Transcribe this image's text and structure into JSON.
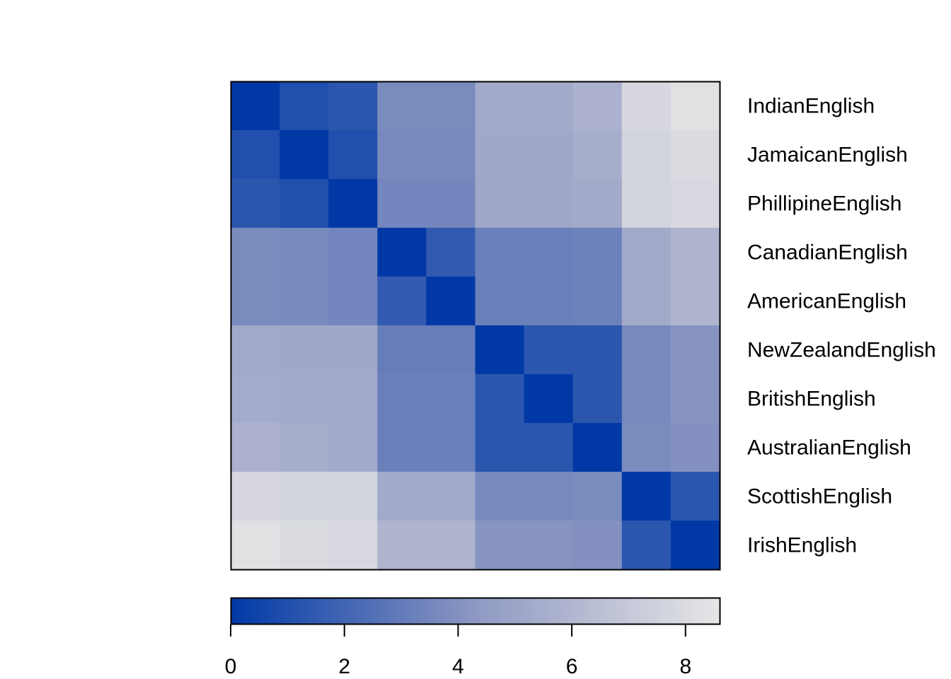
{
  "chart_data": {
    "type": "heatmap",
    "title": "",
    "rows": [
      "IndianEnglish",
      "JamaicanEnglish",
      "PhillipineEnglish",
      "CanadianEnglish",
      "AmericanEnglish",
      "NewZealandEnglish",
      "BritishEnglish",
      "AustralianEnglish",
      "ScottishEnglish",
      "IrishEnglish"
    ],
    "columns": [
      "IndianEnglish",
      "JamaicanEnglish",
      "PhillipineEnglish",
      "CanadianEnglish",
      "AmericanEnglish",
      "NewZealandEnglish",
      "BritishEnglish",
      "AustralianEnglish",
      "ScottishEnglish",
      "IrishEnglish"
    ],
    "values": [
      [
        0.0,
        1.0,
        1.3,
        3.7,
        3.7,
        5.3,
        5.3,
        5.7,
        7.8,
        8.3
      ],
      [
        1.0,
        0.0,
        1.0,
        3.6,
        3.6,
        5.2,
        5.2,
        5.5,
        7.6,
        8.0
      ],
      [
        1.3,
        1.0,
        0.0,
        3.5,
        3.5,
        5.2,
        5.2,
        5.3,
        7.6,
        7.9
      ],
      [
        3.7,
        3.6,
        3.5,
        0.0,
        1.5,
        3.2,
        3.2,
        3.3,
        5.3,
        5.9
      ],
      [
        3.7,
        3.6,
        3.5,
        1.5,
        0.0,
        3.2,
        3.2,
        3.3,
        5.3,
        5.9
      ],
      [
        5.3,
        5.2,
        5.2,
        3.1,
        3.1,
        0.0,
        1.3,
        1.3,
        3.6,
        4.1
      ],
      [
        5.4,
        5.3,
        5.3,
        3.2,
        3.2,
        1.3,
        0.0,
        1.3,
        3.6,
        4.1
      ],
      [
        5.7,
        5.5,
        5.3,
        3.2,
        3.2,
        1.3,
        1.3,
        0.0,
        3.7,
        4.0
      ],
      [
        7.8,
        7.6,
        7.6,
        5.3,
        5.3,
        3.6,
        3.6,
        3.7,
        0.0,
        1.3
      ],
      [
        8.3,
        8.0,
        7.9,
        5.9,
        5.9,
        4.1,
        4.1,
        4.0,
        1.3,
        0.0
      ]
    ],
    "colorbar": {
      "ticks": [
        "0",
        "2",
        "4",
        "6",
        "8"
      ],
      "tick_values": [
        0,
        2,
        4,
        6,
        8
      ],
      "range": [
        0,
        8.6
      ],
      "color_low": "#0039a6",
      "color_mid": "#8e98c2",
      "color_high": "#e6e6e6"
    },
    "grid": false,
    "legend": "bottom colorbar"
  }
}
